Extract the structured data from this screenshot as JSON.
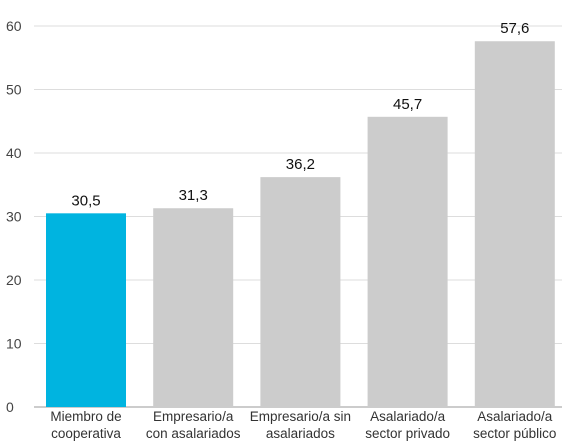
{
  "chart_data": {
    "type": "bar",
    "title": "",
    "xlabel": "",
    "ylabel": "",
    "categories": [
      [
        "Miembro de",
        "cooperativa"
      ],
      [
        "Empresario/a",
        "con asalariados"
      ],
      [
        "Empresario/a sin",
        "asalariados"
      ],
      [
        "Asalariado/a",
        "sector privado"
      ],
      [
        "Asalariado/a",
        "sector público"
      ]
    ],
    "values": [
      30.5,
      31.3,
      36.2,
      45.7,
      57.6
    ],
    "value_labels": [
      "30,5",
      "31,3",
      "36,2",
      "45,7",
      "57,6"
    ],
    "ylim": [
      0,
      60
    ],
    "yticks": [
      0,
      10,
      20,
      30,
      40,
      50,
      60
    ],
    "ytick_labels": [
      "0",
      "10",
      "20",
      "30",
      "40",
      "50",
      "60"
    ],
    "grid": true,
    "legend": "none",
    "colors": {
      "highlight": "#00b4e0",
      "default": "#cccccc",
      "grid": "#dddddd",
      "axis": "#999999"
    },
    "highlight_index": 0
  }
}
